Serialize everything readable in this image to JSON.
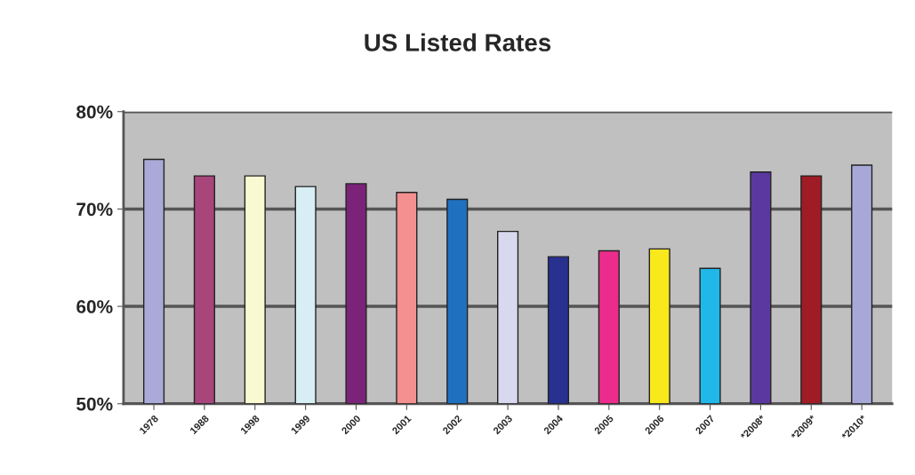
{
  "chart_data": {
    "type": "bar",
    "title": "US Listed Rates",
    "categories": [
      "1978",
      "1988",
      "1998",
      "1999",
      "2000",
      "2001",
      "2002",
      "2003",
      "2004",
      "2005",
      "2006",
      "2007",
      "*2008*",
      "*2009*",
      "*2010*"
    ],
    "values": [
      75.1,
      73.4,
      73.4,
      72.3,
      72.6,
      71.7,
      71.0,
      67.7,
      65.1,
      65.7,
      65.9,
      63.9,
      73.8,
      73.4,
      74.5
    ],
    "colors": [
      "#aaaad8",
      "#a8457a",
      "#fafad2",
      "#d8eef5",
      "#7a2378",
      "#f49090",
      "#2070c0",
      "#d8d8ee",
      "#283090",
      "#ec2c8c",
      "#f8e81c",
      "#20b8e8",
      "#5a38a0",
      "#a01c24",
      "#a8a8d8"
    ],
    "ylim": [
      50,
      80
    ],
    "yticks": [
      {
        "value": 50,
        "label": "50%"
      },
      {
        "value": 60,
        "label": "60%"
      },
      {
        "value": 70,
        "label": "70%"
      },
      {
        "value": 80,
        "label": "80%"
      }
    ],
    "grid": "y"
  }
}
